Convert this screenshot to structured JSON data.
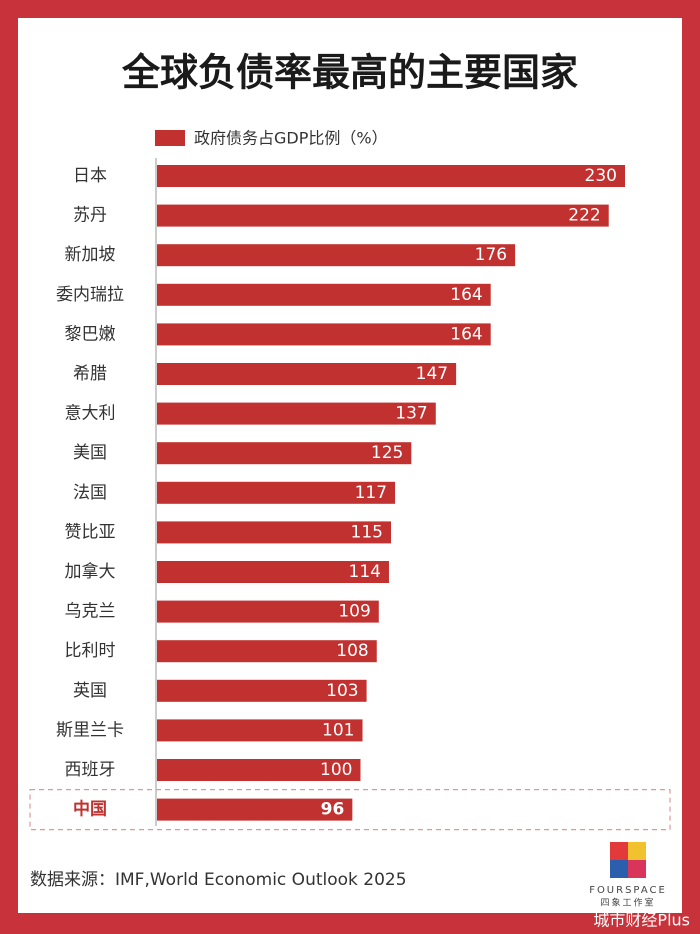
{
  "chart_data": {
    "type": "bar",
    "orientation": "horizontal",
    "title": "全球负债率最高的主要国家",
    "categories": [
      "日本",
      "苏丹",
      "新加坡",
      "委内瑞拉",
      "黎巴嫩",
      "希腊",
      "意大利",
      "美国",
      "法国",
      "赞比亚",
      "加拿大",
      "乌克兰",
      "比利时",
      "英国",
      "斯里兰卡",
      "西班牙",
      "中国"
    ],
    "series": [
      {
        "name": "政府债务占GDP比例（%）",
        "color": "#c0312f",
        "values": [
          230,
          222,
          176,
          164,
          164,
          147,
          137,
          125,
          117,
          115,
          114,
          109,
          108,
          103,
          101,
          100,
          96
        ]
      }
    ],
    "highlight": "中国",
    "highlight_color": "#c0312f"
  },
  "source": "数据来源：IMF,World Economic Outlook 2025",
  "logo": {
    "name": "FOURSPACE",
    "subtitle": "四象工作室"
  },
  "watermark": "城市财经Plus"
}
